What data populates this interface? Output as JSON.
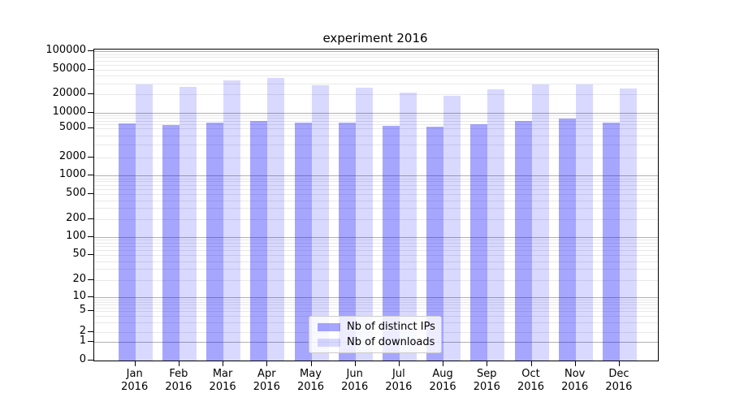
{
  "title": "experiment 2016",
  "chart_data": {
    "type": "bar",
    "title": "experiment 2016",
    "categories": [
      "Jan",
      "Feb",
      "Mar",
      "Apr",
      "May",
      "Jun",
      "Jul",
      "Aug",
      "Sep",
      "Oct",
      "Nov",
      "Dec"
    ],
    "category_year": "2016",
    "series": [
      {
        "name": "Nb of distinct IPs",
        "color": "rgba(0,0,255,0.35)",
        "values": [
          6200,
          5900,
          6400,
          7000,
          6600,
          6400,
          5700,
          5300,
          6000,
          7100,
          7700,
          6400
        ]
      },
      {
        "name": "Nb of downloads",
        "color": "rgba(0,0,255,0.15)",
        "values": [
          29000,
          26800,
          34000,
          36500,
          28500,
          25700,
          21300,
          18800,
          24200,
          28800,
          28800,
          24700
        ]
      }
    ],
    "xlabel": "",
    "ylabel": "",
    "yscale": "symlog",
    "ylim": [
      0,
      100000
    ],
    "yticks": [
      0,
      1,
      2,
      5,
      10,
      20,
      50,
      100,
      200,
      500,
      1000,
      2000,
      5000,
      10000,
      20000,
      50000,
      100000
    ],
    "grid": "horizontal major (powers of 10, darker gray) + log minor gridlines (light gray)",
    "legend_position": "lower center",
    "colors": {
      "bar_ips_rendered": "#a6a6f6",
      "bar_downloads_rendered": "#d9d9fb",
      "grid_major": "#b0b0b0",
      "grid_minor": "#e8e8e8",
      "axis": "#000000"
    }
  }
}
